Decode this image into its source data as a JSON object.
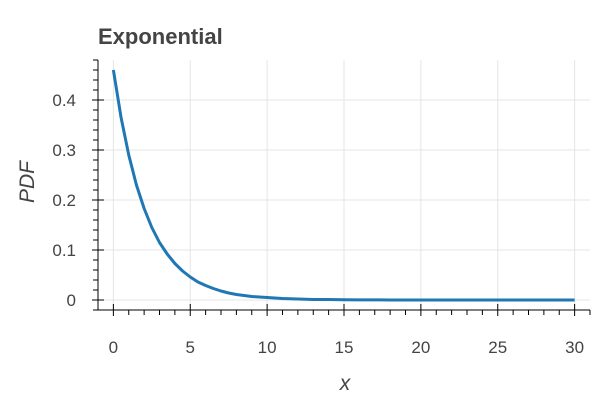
{
  "chart_data": {
    "type": "line",
    "title": "Exponential",
    "xlabel": "x",
    "ylabel": "PDF",
    "xlim": [
      -1,
      31
    ],
    "ylim": [
      -0.02,
      0.48
    ],
    "x_ticks": [
      0,
      5,
      10,
      15,
      20,
      25,
      30
    ],
    "x_tick_labels": [
      "0",
      "5",
      "10",
      "15",
      "20",
      "25",
      "30"
    ],
    "y_ticks": [
      0,
      0.1,
      0.2,
      0.3,
      0.4
    ],
    "y_tick_labels": [
      "0",
      "0.1",
      "0.2",
      "0.3",
      "0.4"
    ],
    "grid": true,
    "series": [
      {
        "color": "#1f77b4",
        "x": [
          0,
          0.5,
          1,
          1.5,
          2,
          2.5,
          3,
          3.5,
          4,
          4.5,
          5,
          5.5,
          6,
          6.5,
          7,
          7.5,
          8,
          8.5,
          9,
          9.5,
          10,
          11,
          12,
          13,
          14,
          15,
          16,
          18,
          20,
          22,
          24,
          26,
          28,
          30
        ],
        "y": [
          0.46,
          0.365,
          0.29,
          0.23,
          0.183,
          0.145,
          0.115,
          0.092,
          0.073,
          0.058,
          0.046,
          0.036,
          0.029,
          0.023,
          0.018,
          0.014,
          0.011,
          0.009,
          0.007,
          0.006,
          0.005,
          0.003,
          0.002,
          0.001,
          0.001,
          0.0005,
          0.0003,
          0.0001,
          0,
          0,
          0,
          0,
          0,
          0
        ]
      }
    ]
  },
  "colors": {
    "line": "#1f77b4",
    "grid": "#e5e5e5",
    "axis": "#000000",
    "text": "#444444"
  }
}
